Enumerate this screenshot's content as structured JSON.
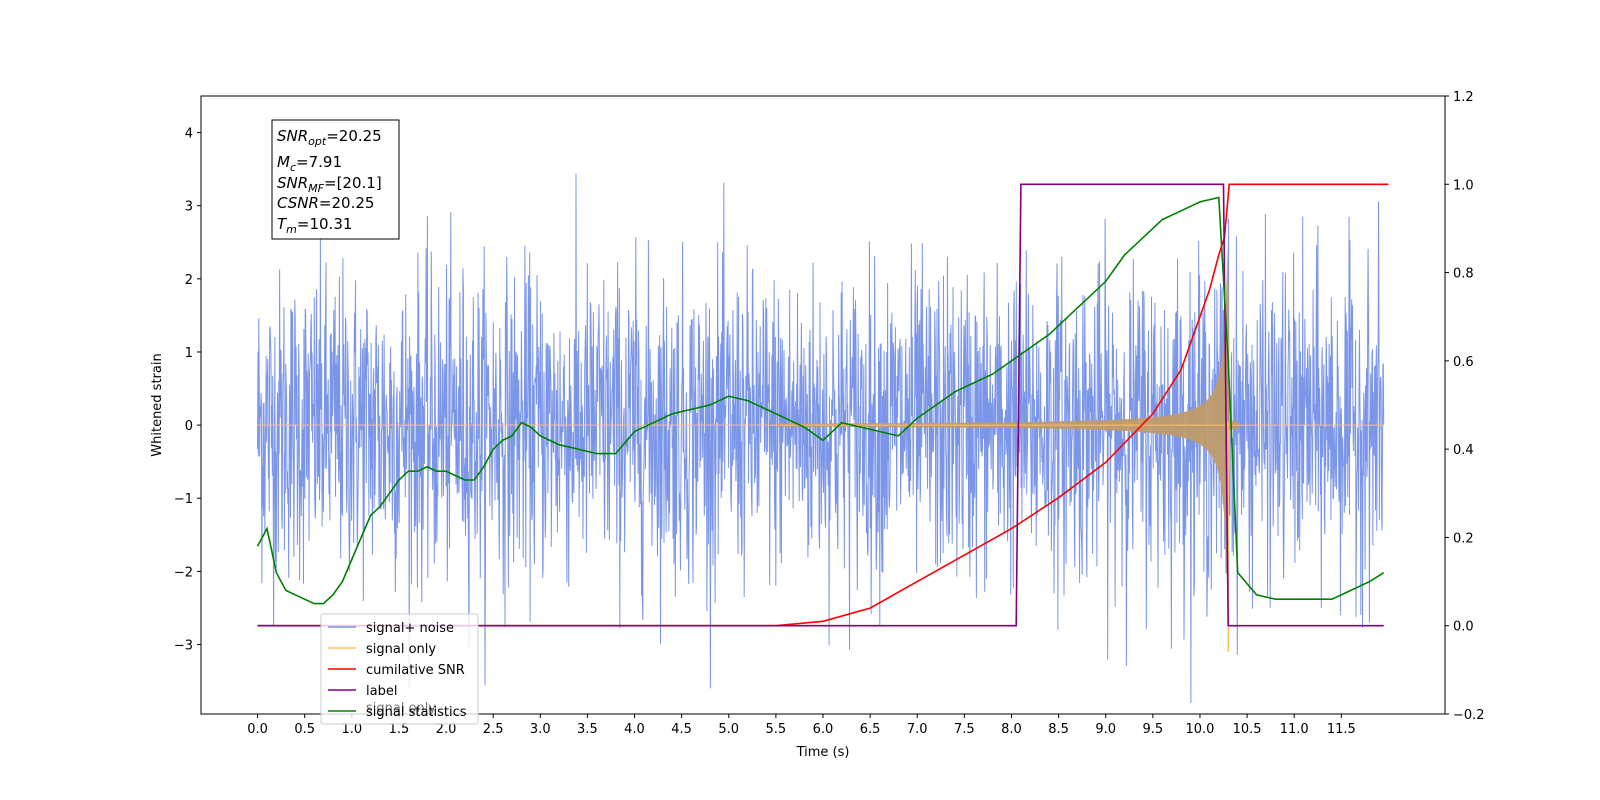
{
  "chart_data": {
    "type": "line",
    "xlabel": "Time (s)",
    "ylabel": "Whitened strain",
    "xlim": [
      -0.6,
      12.6
    ],
    "ylim": [
      -3.95,
      4.5
    ],
    "ylim_right": [
      -0.2,
      1.2
    ],
    "x_ticks": [
      "0.0",
      "0.5",
      "1.0",
      "1.5",
      "2.0",
      "2.5",
      "3.0",
      "3.5",
      "4.0",
      "4.5",
      "5.0",
      "5.5",
      "6.0",
      "6.5",
      "7.0",
      "7.5",
      "8.0",
      "8.5",
      "9.0",
      "9.5",
      "10.0",
      "10.5",
      "11.0",
      "11.5"
    ],
    "y_ticks_left": [
      "−3",
      "−2",
      "−1",
      "0",
      "1",
      "2",
      "3",
      "4"
    ],
    "y_ticks_right": [
      "−0.2",
      "0.0",
      "0.2",
      "0.4",
      "0.6",
      "0.8",
      "1.0",
      "1.2"
    ],
    "annotation": {
      "snr_opt": "=20.25",
      "mc": "=7.91",
      "snr_mf": "=[20.1]",
      "csnr": "=20.25",
      "tm": "=10.31"
    },
    "colors": {
      "noise": "#7b96e8",
      "signal": "#ffc060",
      "signal_fill": "#c09a6c",
      "csnr": "#ff0000",
      "label": "#800080",
      "stat": "#008000"
    },
    "legend_position": "lower-left",
    "legend": [
      "signal+ noise",
      "signal only",
      "cumilative SNR",
      "label",
      "signal statistics"
    ],
    "legend_hidden_text": "signal only",
    "series": [
      {
        "name": "signal+ noise",
        "axis": "left",
        "description_values": "noise_envelope"
      },
      {
        "name": "signal only",
        "axis": "left"
      },
      {
        "name": "cumilative SNR",
        "axis": "right",
        "x": [
          0.0,
          5.5,
          6.0,
          6.5,
          7.0,
          7.5,
          8.0,
          8.5,
          9.0,
          9.5,
          9.8,
          10.0,
          10.1,
          10.2,
          10.26,
          10.31,
          12.0
        ],
        "values": [
          0.0,
          0.0,
          0.01,
          0.04,
          0.1,
          0.16,
          0.22,
          0.29,
          0.37,
          0.48,
          0.58,
          0.7,
          0.76,
          0.84,
          0.88,
          1.0,
          1.0
        ]
      },
      {
        "name": "label",
        "axis": "right",
        "x": [
          0.0,
          8.05,
          8.1,
          10.25,
          10.3,
          11.95
        ],
        "values": [
          0.0,
          0.0,
          1.0,
          1.0,
          0.0,
          0.0
        ]
      },
      {
        "name": "signal statistics",
        "axis": "right",
        "x": [
          0.0,
          0.1,
          0.2,
          0.3,
          0.4,
          0.5,
          0.6,
          0.7,
          0.8,
          0.9,
          1.0,
          1.1,
          1.2,
          1.3,
          1.4,
          1.5,
          1.6,
          1.7,
          1.8,
          1.9,
          2.0,
          2.1,
          2.2,
          2.3,
          2.4,
          2.5,
          2.6,
          2.7,
          2.8,
          2.9,
          3.0,
          3.2,
          3.4,
          3.6,
          3.8,
          4.0,
          4.2,
          4.4,
          4.6,
          4.8,
          5.0,
          5.2,
          5.4,
          5.6,
          5.8,
          6.0,
          6.2,
          6.4,
          6.6,
          6.8,
          7.0,
          7.2,
          7.4,
          7.6,
          7.8,
          8.0,
          8.2,
          8.4,
          8.6,
          8.8,
          9.0,
          9.2,
          9.4,
          9.6,
          9.8,
          10.0,
          10.2,
          10.3,
          10.4,
          10.6,
          10.8,
          11.0,
          11.2,
          11.4,
          11.6,
          11.8,
          11.95
        ],
        "values": [
          0.18,
          0.22,
          0.12,
          0.08,
          0.07,
          0.06,
          0.05,
          0.05,
          0.07,
          0.1,
          0.15,
          0.2,
          0.25,
          0.27,
          0.3,
          0.33,
          0.35,
          0.35,
          0.36,
          0.35,
          0.35,
          0.34,
          0.33,
          0.33,
          0.36,
          0.4,
          0.42,
          0.43,
          0.46,
          0.45,
          0.43,
          0.41,
          0.4,
          0.39,
          0.39,
          0.44,
          0.46,
          0.48,
          0.49,
          0.5,
          0.52,
          0.51,
          0.49,
          0.47,
          0.45,
          0.42,
          0.46,
          0.45,
          0.44,
          0.43,
          0.47,
          0.5,
          0.53,
          0.55,
          0.57,
          0.6,
          0.63,
          0.66,
          0.7,
          0.74,
          0.78,
          0.84,
          0.88,
          0.92,
          0.94,
          0.96,
          0.97,
          0.6,
          0.12,
          0.07,
          0.06,
          0.06,
          0.06,
          0.06,
          0.08,
          0.1,
          0.12
        ]
      }
    ]
  }
}
